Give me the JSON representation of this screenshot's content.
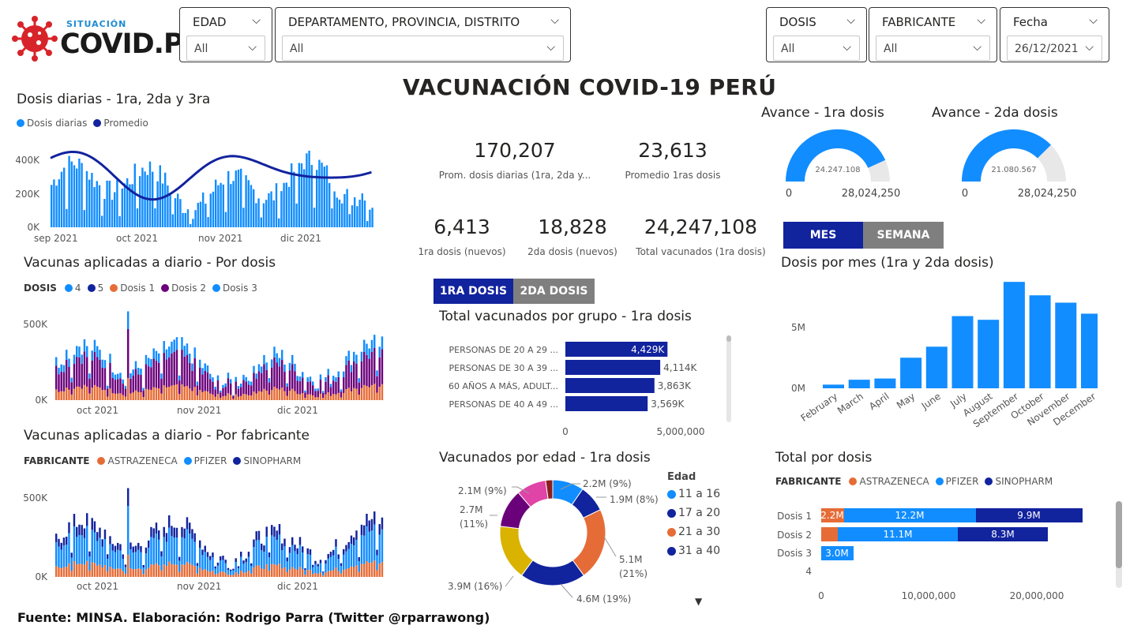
{
  "logo": {
    "top": "SITUACIÓN",
    "main": "COVID.PE"
  },
  "filters": {
    "edad": {
      "label": "EDAD",
      "value": "All"
    },
    "depto": {
      "label": "DEPARTAMENTO, PROVINCIA, DISTRITO",
      "value": "All"
    },
    "dosis": {
      "label": "DOSIS",
      "value": "All"
    },
    "fabricante": {
      "label": "FABRICANTE",
      "value": "All"
    },
    "fecha": {
      "label": "Fecha",
      "value": "26/12/2021"
    }
  },
  "main_title": "VACUNACIÓN COVID-19 PERÚ",
  "kpis": [
    {
      "value": "170,207",
      "label": "Prom. dosis diarias (1ra, 2da y..."
    },
    {
      "value": "23,613",
      "label": "Promedio 1ras dosis"
    },
    {
      "value": "6,413",
      "label": "1ra dosis (nuevos)"
    },
    {
      "value": "18,828",
      "label": "2da dosis (nuevos)"
    },
    {
      "value": "24,247,108",
      "label": "Total vacunados (1ra dosis)"
    }
  ],
  "gauges": [
    {
      "title": "Avance - 1ra dosis",
      "value_label": "24.247.108",
      "min": "0",
      "max": "28,024,250",
      "fraction": 0.865
    },
    {
      "title": "Avance - 2da dosis",
      "value_label": "21.080.567",
      "min": "0",
      "max": "28,024,250",
      "fraction": 0.752
    }
  ],
  "toggles": {
    "mes": "MES",
    "semana": "SEMANA",
    "d1": "1RA DOSIS",
    "d2": "2DA DOSIS"
  },
  "colors": {
    "light_blue": "#118DFF",
    "dark_blue": "#12239E",
    "orange": "#E66C37",
    "purple": "#6B007B",
    "pink": "#E044A7",
    "yellow": "#D9B300",
    "dark_red": "#744EC2"
  },
  "daily_chart": {
    "title": "Dosis diarias - 1ra, 2da y 3ra",
    "legend": [
      "Dosis diarias",
      "Promedio"
    ],
    "yticks": [
      "400K",
      "200K",
      "0K"
    ],
    "xticks": [
      "sep 2021",
      "oct 2021",
      "nov 2021",
      "dic 2021"
    ]
  },
  "por_dosis_chart": {
    "title": "Vacunas aplicadas a diario - Por dosis",
    "legend_title": "DOSIS",
    "legend": [
      "4",
      "5",
      "Dosis 1",
      "Dosis 2",
      "Dosis 3"
    ],
    "yticks": [
      "500K",
      "0K"
    ],
    "xticks": [
      "oct 2021",
      "nov 2021",
      "dic 2021"
    ]
  },
  "por_fab_chart": {
    "title": "Vacunas aplicadas a diario - Por fabricante",
    "legend_title": "FABRICANTE",
    "legend": [
      "ASTRAZENECA",
      "PFIZER",
      "SINOPHARM"
    ],
    "yticks": [
      "500K",
      "0K"
    ],
    "xticks": [
      "oct 2021",
      "nov 2021",
      "dic 2021"
    ]
  },
  "grupo_chart": {
    "title": "Total vacunados por grupo - 1ra dosis",
    "categories": [
      "PERSONAS DE 20 A 29 ...",
      "PERSONAS DE 30 A 39 ...",
      "60 AÑOS A MÁS, ADULT...",
      "PERSONAS DE 40 A 49 ..."
    ],
    "values": [
      4429,
      4114,
      3863,
      3569
    ],
    "labels": [
      "4,429K",
      "4,114K",
      "3,863K",
      "3,569K"
    ],
    "xticks": [
      "0",
      "5,000,000"
    ]
  },
  "edad_chart": {
    "title": "Vacunados por edad - 1ra dosis",
    "legend_title": "Edad",
    "legend": [
      "11 a 16",
      "17 a 20",
      "21 a 30",
      "31 a 40"
    ],
    "labels": [
      "2.2M (9%)",
      "1.9M (8%)",
      "5.1M",
      "(21%)",
      "4.6M (19%)",
      "3.9M (16%)",
      "2.7M",
      "(11%)",
      "2.1M (9%)"
    ]
  },
  "mes_chart": {
    "title": "Dosis por mes (1ra y 2da dosis)",
    "categories": [
      "February",
      "March",
      "April",
      "May",
      "June",
      "July",
      "August",
      "September",
      "October",
      "November",
      "December"
    ],
    "values": [
      0.3,
      0.7,
      0.8,
      2.5,
      3.4,
      5.9,
      5.6,
      8.7,
      7.6,
      7.0,
      6.1
    ],
    "yticks": [
      "5M",
      "0M"
    ]
  },
  "total_dosis_chart": {
    "title": "Total por dosis",
    "legend_title": "FABRICANTE",
    "legend": [
      "ASTRAZENECA",
      "PFIZER",
      "SINOPHARM"
    ],
    "categories": [
      "Dosis 1",
      "Dosis 2",
      "Dosis 3",
      "4"
    ],
    "labels": {
      "d1": [
        "2.2M",
        "12.2M",
        "9.9M"
      ],
      "d2": [
        "11.1M",
        "8.3M"
      ],
      "d3": [
        "3.0M"
      ]
    },
    "xticks": [
      "0",
      "10,000,000",
      "20,000,000"
    ]
  },
  "footer": "Fuente: MINSA. Elaboración: Rodrigo Parra (Twitter @rparrawong)",
  "chart_data": [
    {
      "type": "bar",
      "title": "Total vacunados por grupo - 1ra dosis",
      "categories": [
        "PERSONAS DE 20 A 29 ...",
        "PERSONAS DE 30 A 39 ...",
        "60 AÑOS A MÁS, ADULT...",
        "PERSONAS DE 40 A 49 ..."
      ],
      "values": [
        4429000,
        4114000,
        3863000,
        3569000
      ]
    },
    {
      "type": "bar",
      "title": "Dosis por mes (1ra y 2da dosis)",
      "categories": [
        "February",
        "March",
        "April",
        "May",
        "June",
        "July",
        "August",
        "September",
        "October",
        "November",
        "December"
      ],
      "values": [
        300000,
        700000,
        800000,
        2500000,
        3400000,
        5900000,
        5600000,
        8700000,
        7600000,
        7000000,
        6100000
      ]
    },
    {
      "type": "pie",
      "title": "Vacunados por edad - 1ra dosis",
      "values": [
        2.2,
        1.9,
        5.1,
        4.6,
        3.9,
        2.7,
        2.1
      ]
    },
    {
      "type": "bar",
      "title": "Total por dosis",
      "categories": [
        "Dosis 1",
        "Dosis 2",
        "Dosis 3"
      ],
      "series": [
        {
          "name": "ASTRAZENECA",
          "values": [
            2.2,
            1.5,
            0
          ]
        },
        {
          "name": "PFIZER",
          "values": [
            12.2,
            11.1,
            3.0
          ]
        },
        {
          "name": "SINOPHARM",
          "values": [
            9.9,
            8.3,
            0
          ]
        }
      ]
    }
  ]
}
